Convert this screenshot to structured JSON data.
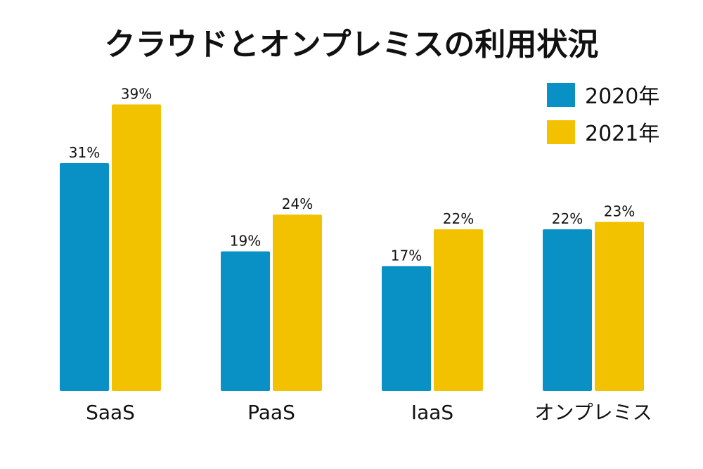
{
  "chart_data": {
    "type": "bar",
    "title": "クラウドとオンプレミスの利用状況",
    "categories": [
      "SaaS",
      "PaaS",
      "IaaS",
      "オンプレミス"
    ],
    "series": [
      {
        "name": "2020年",
        "color": "#0990C4",
        "values": [
          31,
          19,
          17,
          22
        ],
        "labels": [
          "31%",
          "19%",
          "17%",
          "22%"
        ]
      },
      {
        "name": "2021年",
        "color": "#F2C200",
        "values": [
          39,
          24,
          22,
          23
        ],
        "labels": [
          "39%",
          "24%",
          "22%",
          "23%"
        ]
      }
    ],
    "unit": "%",
    "ylim": [
      0,
      50
    ],
    "grid": false,
    "legend_position": "top-right"
  }
}
